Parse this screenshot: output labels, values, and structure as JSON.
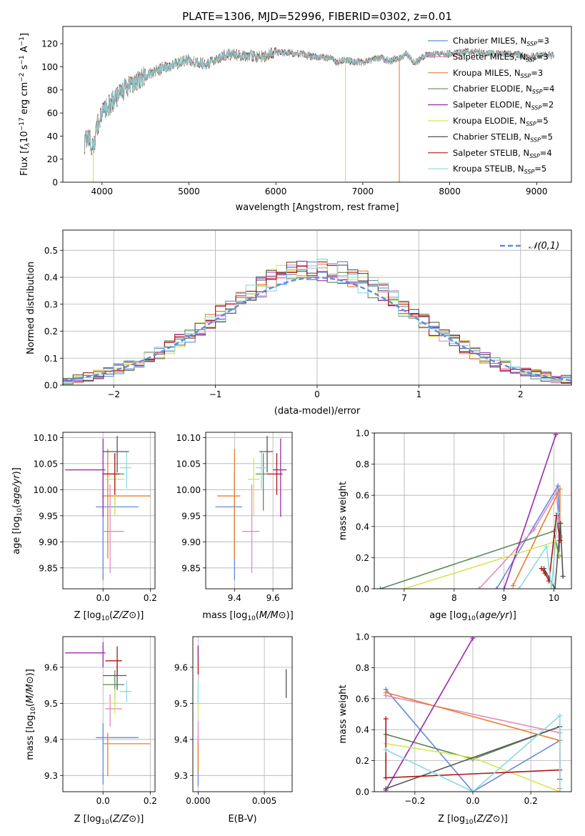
{
  "colors": {
    "Chabrier MILES": "#6389dd",
    "Salpeter MILES": "#e18ac6",
    "Kroupa MILES": "#e6802b",
    "Chabrier ELODIE": "#5f8a5c",
    "Salpeter ELODIE": "#9b2aad",
    "Kroupa ELODIE": "#d4e657",
    "Chabrier STELIB": "#555555",
    "Salpeter STELIB": "#b01313",
    "Kroupa STELIB": "#8adbe0"
  },
  "chart_data": [
    {
      "id": "spectrum",
      "type": "line",
      "title": "PLATE=1306, MJD=52996, FIBERID=0302, z=0.01",
      "xlabel": "wavelength [Angstrom, rest frame]",
      "ylabel": "Flux [f_λ 10^-17 erg cm^-2 s^-1 A^-1]",
      "xlim": [
        3550,
        9400
      ],
      "ylim": [
        0,
        135
      ],
      "xticks": [
        4000,
        5000,
        6000,
        7000,
        8000,
        9000
      ],
      "yticks": [
        0,
        20,
        40,
        60,
        80,
        100,
        120
      ],
      "legend_position": "top-right",
      "legend": [
        {
          "model": "Chabrier MILES",
          "n": "3"
        },
        {
          "model": "Salpeter MILES",
          "n": "3"
        },
        {
          "model": "Kroupa MILES",
          "n": "3"
        },
        {
          "model": "Chabrier ELODIE",
          "n": "4"
        },
        {
          "model": "Salpeter ELODIE",
          "n": "2"
        },
        {
          "model": "Kroupa ELODIE",
          "n": "5"
        },
        {
          "model": "Chabrier STELIB",
          "n": "5"
        },
        {
          "model": "Salpeter STELIB",
          "n": "4"
        },
        {
          "model": "Kroupa STELIB",
          "n": "5"
        }
      ],
      "continuum_x": [
        3800,
        3850,
        3900,
        3950,
        4000,
        4100,
        4200,
        4300,
        4400,
        4500,
        4600,
        4700,
        4800,
        4900,
        5000,
        5100,
        5200,
        5300,
        5400,
        5500,
        5600,
        5700,
        5800,
        5900,
        6000,
        6100,
        6200,
        6300,
        6400,
        6500,
        6600,
        6700,
        6800,
        6900,
        7000,
        7100,
        7200,
        7300,
        7400,
        7500,
        7600,
        7700,
        7800,
        7900,
        8000,
        8100,
        8200,
        8300,
        8400,
        8500,
        8600,
        8700,
        8800,
        8900,
        9000,
        9100,
        9200
      ],
      "continuum_y": [
        34,
        40,
        28,
        50,
        60,
        68,
        77,
        84,
        88,
        92,
        95,
        99,
        101,
        104,
        106,
        104,
        102,
        106,
        110,
        111,
        109,
        110,
        108,
        110,
        113,
        112,
        112,
        111,
        109,
        108,
        108,
        104,
        106,
        104,
        104,
        106,
        108,
        105,
        107,
        111,
        103,
        109,
        111,
        111,
        111,
        112,
        113,
        113,
        112,
        112,
        111,
        111,
        111,
        108,
        110,
        110,
        110
      ],
      "cut_lines": [
        {
          "x": 3900,
          "model": "Kroupa ELODIE"
        },
        {
          "x": 6800,
          "model": "Kroupa ELODIE"
        },
        {
          "x": 7420,
          "model": "Kroupa MILES"
        }
      ]
    },
    {
      "id": "residuals",
      "type": "line",
      "xlabel": "(data-model)/error",
      "ylabel": "Normed distribution",
      "xlim": [
        -2.5,
        2.5
      ],
      "ylim": [
        0,
        0.575
      ],
      "xticks": [
        -2,
        -1,
        0,
        1,
        2
      ],
      "yticks": [
        0.0,
        0.1,
        0.2,
        0.3,
        0.4,
        0.5
      ],
      "legend": [
        "𝒩(0,1)"
      ],
      "legend_position": "top-right",
      "bin_width": 0.1,
      "bin_start": -2.5,
      "normal_curve": {
        "mean": 0,
        "sigma": 1
      }
    },
    {
      "id": "age-vs-Z",
      "type": "scatter",
      "xlabel": "Z [log10(Z/Z⊙)]",
      "ylabel": "age  [log10(age/yr)]",
      "xlim": [
        -0.17,
        0.22
      ],
      "ylim": [
        9.81,
        10.11
      ],
      "xticks": [
        0.0,
        0.2
      ],
      "yticks": [
        9.85,
        9.9,
        9.95,
        10.0,
        10.05,
        10.1
      ],
      "points": [
        {
          "model": "Chabrier MILES",
          "x": 0.0,
          "xerr": [
            0.03,
            0.15
          ],
          "y": 9.967,
          "yerr": [
            0.14,
            0.066
          ]
        },
        {
          "model": "Salpeter MILES",
          "x": 0.03,
          "xerr": [
            0.03,
            0.06
          ],
          "y": 9.92,
          "yerr": [
            0.08,
            0.09
          ]
        },
        {
          "model": "Kroupa MILES",
          "x": 0.02,
          "xerr": [
            0.02,
            0.18
          ],
          "y": 9.988,
          "yerr": [
            0.12,
            0.09
          ]
        },
        {
          "model": "Chabrier ELODIE",
          "x": 0.05,
          "xerr": [
            0.05,
            0.04
          ],
          "y": 10.03,
          "yerr": [
            0.07,
            0.04
          ]
        },
        {
          "model": "Salpeter ELODIE",
          "x": 0.0,
          "xerr": [
            0.16,
            0.01
          ],
          "y": 10.038,
          "yerr": [
            0.09,
            0.06
          ]
        },
        {
          "model": "Kroupa ELODIE",
          "x": 0.05,
          "xerr": [
            0.04,
            0.04
          ],
          "y": 10.02,
          "yerr": [
            0.07,
            0.04
          ]
        },
        {
          "model": "Chabrier STELIB",
          "x": 0.06,
          "xerr": [
            0.06,
            0.05
          ],
          "y": 10.073,
          "yerr": [
            0.04,
            0.03
          ]
        },
        {
          "model": "Salpeter STELIB",
          "x": 0.05,
          "xerr": [
            0.05,
            0.02
          ],
          "y": 10.03,
          "yerr": [
            0.04,
            0.04
          ]
        },
        {
          "model": "Kroupa STELIB",
          "x": 0.1,
          "xerr": [
            0.03,
            0.02
          ],
          "y": 10.042,
          "yerr": [
            0.04,
            0.03
          ]
        }
      ]
    },
    {
      "id": "age-vs-mass",
      "type": "scatter",
      "xlabel": "mass [log10(M/M⊙)]",
      "ylabel": "",
      "xlim": [
        9.25,
        9.7
      ],
      "ylim": [
        9.81,
        10.11
      ],
      "xticks": [
        9.4,
        9.6
      ],
      "yticks": [
        9.85,
        9.9,
        9.95,
        10.0,
        10.05,
        10.1
      ],
      "points": [
        {
          "model": "Chabrier MILES",
          "x": 9.4,
          "xerr": [
            0.1,
            0.04
          ],
          "y": 9.967,
          "yerr": [
            0.14,
            0.066
          ]
        },
        {
          "model": "Salpeter MILES",
          "x": 9.49,
          "xerr": [
            0.05,
            0.04
          ],
          "y": 9.92,
          "yerr": [
            0.08,
            0.09
          ]
        },
        {
          "model": "Kroupa MILES",
          "x": 9.4,
          "xerr": [
            0.09,
            0.03
          ],
          "y": 9.988,
          "yerr": [
            0.12,
            0.09
          ]
        },
        {
          "model": "Chabrier ELODIE",
          "x": 9.55,
          "xerr": [
            0.04,
            0.03
          ],
          "y": 10.03,
          "yerr": [
            0.07,
            0.04
          ]
        },
        {
          "model": "Salpeter ELODIE",
          "x": 9.64,
          "xerr": [
            0.04,
            0.03
          ],
          "y": 10.038,
          "yerr": [
            0.09,
            0.06
          ]
        },
        {
          "model": "Kroupa ELODIE",
          "x": 9.5,
          "xerr": [
            0.03,
            0.03
          ],
          "y": 10.02,
          "yerr": [
            0.07,
            0.04
          ]
        },
        {
          "model": "Chabrier STELIB",
          "x": 9.57,
          "xerr": [
            0.04,
            0.03
          ],
          "y": 10.073,
          "yerr": [
            0.04,
            0.03
          ]
        },
        {
          "model": "Salpeter STELIB",
          "x": 9.62,
          "xerr": [
            0.05,
            0.03
          ],
          "y": 10.03,
          "yerr": [
            0.04,
            0.04
          ]
        },
        {
          "model": "Kroupa STELIB",
          "x": 9.54,
          "xerr": [
            0.03,
            0.03
          ],
          "y": 10.042,
          "yerr": [
            0.04,
            0.03
          ]
        }
      ]
    },
    {
      "id": "mass-vs-Z",
      "type": "scatter",
      "xlabel": "Z [log10(Z/Z⊙)]",
      "ylabel": "mass [log10(M/M⊙)]",
      "xlim": [
        -0.17,
        0.22
      ],
      "ylim": [
        9.255,
        9.685
      ],
      "xticks": [
        0.0,
        0.2
      ],
      "yticks": [
        9.3,
        9.4,
        9.5,
        9.6
      ],
      "points": [
        {
          "model": "Chabrier MILES",
          "x": 0.0,
          "xerr": [
            0.03,
            0.15
          ],
          "y": 9.405,
          "yerr": [
            0.13,
            0.04
          ]
        },
        {
          "model": "Salpeter MILES",
          "x": 0.03,
          "xerr": [
            0.02,
            0.05
          ],
          "y": 9.485,
          "yerr": [
            0.05,
            0.04
          ]
        },
        {
          "model": "Kroupa MILES",
          "x": 0.02,
          "xerr": [
            0.02,
            0.18
          ],
          "y": 9.388,
          "yerr": [
            0.09,
            0.03
          ]
        },
        {
          "model": "Chabrier ELODIE",
          "x": 0.05,
          "xerr": [
            0.05,
            0.04
          ],
          "y": 9.552,
          "yerr": [
            0.04,
            0.04
          ]
        },
        {
          "model": "Salpeter ELODIE",
          "x": 0.0,
          "xerr": [
            0.16,
            0.01
          ],
          "y": 9.64,
          "yerr": [
            0.04,
            0.03
          ]
        },
        {
          "model": "Kroupa ELODIE",
          "x": 0.05,
          "xerr": [
            0.04,
            0.04
          ],
          "y": 9.5,
          "yerr": [
            0.03,
            0.04
          ]
        },
        {
          "model": "Chabrier STELIB",
          "x": 0.06,
          "xerr": [
            0.06,
            0.04
          ],
          "y": 9.577,
          "yerr": [
            0.04,
            0.03
          ]
        },
        {
          "model": "Salpeter STELIB",
          "x": 0.06,
          "xerr": [
            0.05,
            0.02
          ],
          "y": 9.618,
          "yerr": [
            0.04,
            0.04
          ]
        },
        {
          "model": "Kroupa STELIB",
          "x": 0.1,
          "xerr": [
            0.03,
            0.02
          ],
          "y": 9.533,
          "yerr": [
            0.03,
            0.03
          ]
        }
      ]
    },
    {
      "id": "mass-vs-ebv",
      "type": "scatter",
      "xlabel": "E(B-V)",
      "ylabel": "",
      "xlim": [
        -0.0004,
        0.0071
      ],
      "ylim": [
        9.255,
        9.685
      ],
      "xticks": [
        0.0,
        0.005
      ],
      "yticks": [
        9.3,
        9.4,
        9.5,
        9.6
      ],
      "points": [
        {
          "model": "Chabrier MILES",
          "x": 0.0,
          "y": 9.3,
          "yerr": [
            0.03,
            0.1
          ]
        },
        {
          "model": "Kroupa MILES",
          "x": 0.0,
          "y": 9.36,
          "yerr": [
            0.05,
            0.05
          ]
        },
        {
          "model": "Salpeter MILES",
          "x": 0.0,
          "y": 9.42,
          "yerr": [
            0.03,
            0.03
          ]
        },
        {
          "model": "Kroupa ELODIE",
          "x": 0.0,
          "y": 9.5,
          "yerr": [
            0.03,
            0.04
          ]
        },
        {
          "model": "Kroupa STELIB",
          "x": 0.0,
          "y": 9.53,
          "yerr": [
            0.03,
            0.03
          ]
        },
        {
          "model": "Salpeter STELIB",
          "x": 0.0,
          "y": 9.62,
          "yerr": [
            0.04,
            0.04
          ]
        },
        {
          "model": "Salpeter ELODIE",
          "x": 0.0,
          "y": 9.64,
          "yerr": [
            0.02,
            0.02
          ]
        },
        {
          "model": "Chabrier STELIB",
          "x": 0.00665,
          "y": 9.555,
          "yerr": [
            0.04,
            0.04
          ]
        }
      ]
    },
    {
      "id": "weight-vs-age",
      "type": "line",
      "xlabel": "age  [log10(age/yr)]",
      "ylabel": "mass weight",
      "xlim": [
        6.4,
        10.35
      ],
      "ylim": [
        0,
        1.0
      ],
      "xticks": [
        6,
        7,
        8,
        9,
        10
      ],
      "yticks": [
        0.0,
        0.2,
        0.4,
        0.6,
        0.8,
        1.0
      ],
      "series": [
        {
          "model": "Chabrier MILES",
          "x": [
            8.85,
            10.08,
            10.12
          ],
          "y": [
            0.0,
            0.66,
            0.33
          ]
        },
        {
          "model": "Salpeter MILES",
          "x": [
            8.5,
            9.6,
            10.05,
            10.12
          ],
          "y": [
            0.0,
            0.38,
            0.62,
            0.33
          ]
        },
        {
          "model": "Kroupa MILES",
          "x": [
            9.18,
            10.12,
            10.12
          ],
          "y": [
            0.02,
            0.64,
            0.34
          ]
        },
        {
          "model": "Chabrier ELODIE",
          "x": [
            6.52,
            10.0,
            10.1,
            10.13
          ],
          "y": [
            0.0,
            0.37,
            0.21,
            0.42
          ]
        },
        {
          "model": "Salpeter ELODIE",
          "x": [
            9.0,
            10.04
          ],
          "y": [
            0.0,
            0.99
          ]
        },
        {
          "model": "Kroupa ELODIE",
          "x": [
            7.0,
            10.0,
            10.1
          ],
          "y": [
            0.0,
            0.3,
            0.22
          ]
        },
        {
          "model": "Chabrier STELIB",
          "x": [
            9.8,
            10.02,
            10.13,
            10.18
          ],
          "y": [
            0.13,
            0.0,
            0.42,
            0.08
          ]
        },
        {
          "model": "Salpeter STELIB",
          "x": [
            9.75,
            9.82,
            9.9,
            10.05,
            10.12
          ],
          "y": [
            0.13,
            0.1,
            0.05,
            0.47,
            0.31
          ]
        },
        {
          "model": "Kroupa STELIB",
          "x": [
            9.3,
            9.85,
            9.95,
            10.08
          ],
          "y": [
            0.0,
            0.27,
            0.0,
            0.49
          ]
        }
      ]
    },
    {
      "id": "weight-vs-Z",
      "type": "line",
      "xlabel": "Z [log10(Z/Z⊙)]",
      "ylabel": "mass weight",
      "xlim": [
        -0.34,
        0.34
      ],
      "ylim": [
        0,
        1.0
      ],
      "xticks": [
        -0.2,
        0.0,
        0.2
      ],
      "yticks": [
        0.0,
        0.2,
        0.4,
        0.6,
        0.8,
        1.0
      ],
      "series": [
        {
          "model": "Chabrier MILES",
          "x": [
            -0.3,
            0.0,
            0.3
          ],
          "y": [
            0.66,
            0.0,
            0.33
          ]
        },
        {
          "model": "Salpeter MILES",
          "x": [
            -0.3,
            0.3
          ],
          "y": [
            0.62,
            0.38
          ]
        },
        {
          "model": "Kroupa MILES",
          "x": [
            -0.3,
            0.3,
            0.3
          ],
          "y": [
            0.64,
            0.33,
            0.02
          ]
        },
        {
          "model": "Chabrier ELODIE",
          "x": [
            -0.3,
            0.0,
            0.3
          ],
          "y": [
            0.37,
            0.21,
            0.42
          ]
        },
        {
          "model": "Salpeter ELODIE",
          "x": [
            -0.3,
            0.0
          ],
          "y": [
            0.01,
            0.99
          ]
        },
        {
          "model": "Kroupa ELODIE",
          "x": [
            -0.3,
            0.0,
            0.3
          ],
          "y": [
            0.31,
            0.22,
            0.0
          ]
        },
        {
          "model": "Chabrier STELIB",
          "x": [
            -0.3,
            0.3,
            0.3
          ],
          "y": [
            0.02,
            0.42,
            0.08
          ]
        },
        {
          "model": "Salpeter STELIB",
          "x": [
            -0.3,
            -0.3,
            0.3
          ],
          "y": [
            0.47,
            0.09,
            0.14
          ]
        },
        {
          "model": "Kroupa STELIB",
          "x": [
            -0.3,
            0.0,
            0.3,
            0.3
          ],
          "y": [
            0.27,
            0.0,
            0.49,
            0.0
          ]
        }
      ]
    }
  ]
}
